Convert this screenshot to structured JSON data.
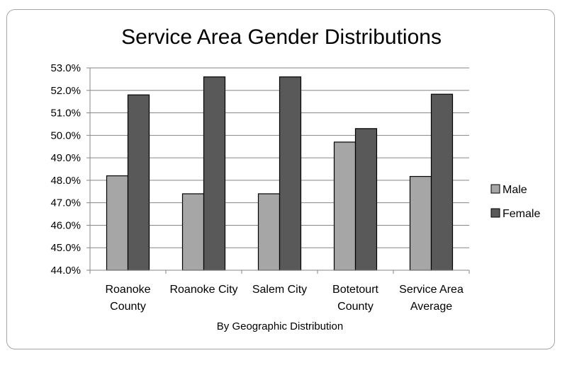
{
  "chart_data": {
    "type": "bar",
    "title": "Service Area Gender Distributions",
    "xlabel": "By Geographic Distribution",
    "ylabel": "",
    "ylim": [
      44.0,
      53.0
    ],
    "y_ticks": [
      "44.0%",
      "45.0%",
      "46.0%",
      "47.0%",
      "48.0%",
      "49.0%",
      "50.0%",
      "51.0%",
      "52.0%",
      "53.0%"
    ],
    "categories": [
      [
        "Roanoke",
        "County"
      ],
      [
        "Roanoke City"
      ],
      [
        "Salem City"
      ],
      [
        "Botetourt",
        "County"
      ],
      [
        "Service Area",
        "Average"
      ]
    ],
    "series": [
      {
        "name": "Male",
        "color": "#a6a6a6",
        "values": [
          48.2,
          47.4,
          47.4,
          49.7,
          48.17
        ]
      },
      {
        "name": "Female",
        "color": "#595959",
        "values": [
          51.8,
          52.6,
          52.6,
          50.3,
          51.83
        ]
      }
    ],
    "legend_position": "right",
    "grid": true
  }
}
